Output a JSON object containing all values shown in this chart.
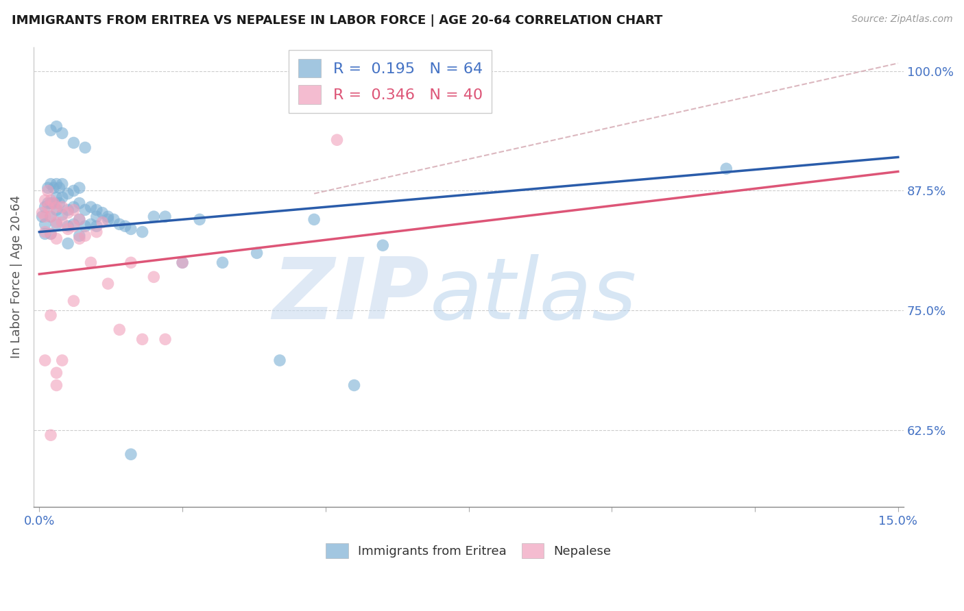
{
  "title": "IMMIGRANTS FROM ERITREA VS NEPALESE IN LABOR FORCE | AGE 20-64 CORRELATION CHART",
  "source": "Source: ZipAtlas.com",
  "ylabel": "In Labor Force | Age 20-64",
  "xlim": [
    -0.001,
    0.151
  ],
  "ylim": [
    0.545,
    1.025
  ],
  "xticks": [
    0.0,
    0.025,
    0.05,
    0.075,
    0.1,
    0.125,
    0.15
  ],
  "xticklabels": [
    "0.0%",
    "",
    "",
    "",
    "",
    "",
    "15.0%"
  ],
  "yticks": [
    0.625,
    0.75,
    0.875,
    1.0
  ],
  "yticklabels": [
    "62.5%",
    "75.0%",
    "87.5%",
    "100.0%"
  ],
  "axis_color": "#4472c4",
  "blue_R": "0.195",
  "blue_N": "64",
  "pink_R": "0.346",
  "pink_N": "40",
  "blue_dot_color": "#7bafd4",
  "pink_dot_color": "#f0a0bc",
  "blue_line_color": "#2a5caa",
  "pink_line_color": "#dd5577",
  "dashed_line_color": "#d8b0b8",
  "blue_trend": [
    0.0,
    0.832,
    0.15,
    0.91
  ],
  "pink_trend": [
    0.0,
    0.788,
    0.15,
    0.895
  ],
  "dashed_trend": [
    0.048,
    0.872,
    0.15,
    1.008
  ],
  "blue_scatter_x": [
    0.0005,
    0.001,
    0.001,
    0.001,
    0.0015,
    0.0015,
    0.002,
    0.002,
    0.002,
    0.002,
    0.0025,
    0.0025,
    0.003,
    0.003,
    0.003,
    0.003,
    0.0035,
    0.0035,
    0.004,
    0.004,
    0.004,
    0.005,
    0.005,
    0.005,
    0.005,
    0.006,
    0.006,
    0.006,
    0.007,
    0.007,
    0.007,
    0.007,
    0.008,
    0.008,
    0.009,
    0.009,
    0.01,
    0.01,
    0.011,
    0.012,
    0.013,
    0.014,
    0.015,
    0.016,
    0.018,
    0.02,
    0.022,
    0.025,
    0.028,
    0.032,
    0.038,
    0.042,
    0.048,
    0.055,
    0.06,
    0.002,
    0.003,
    0.004,
    0.006,
    0.008,
    0.01,
    0.012,
    0.12,
    0.016
  ],
  "blue_scatter_y": [
    0.848,
    0.858,
    0.84,
    0.83,
    0.878,
    0.862,
    0.882,
    0.862,
    0.848,
    0.83,
    0.878,
    0.862,
    0.882,
    0.868,
    0.855,
    0.84,
    0.878,
    0.862,
    0.882,
    0.868,
    0.85,
    0.872,
    0.855,
    0.838,
    0.82,
    0.875,
    0.858,
    0.84,
    0.878,
    0.862,
    0.845,
    0.828,
    0.855,
    0.838,
    0.858,
    0.84,
    0.855,
    0.838,
    0.852,
    0.848,
    0.845,
    0.84,
    0.838,
    0.835,
    0.832,
    0.848,
    0.848,
    0.8,
    0.845,
    0.8,
    0.81,
    0.698,
    0.845,
    0.672,
    0.818,
    0.938,
    0.942,
    0.935,
    0.925,
    0.92,
    0.848,
    0.845,
    0.898,
    0.6
  ],
  "pink_scatter_x": [
    0.0005,
    0.001,
    0.001,
    0.001,
    0.0015,
    0.0015,
    0.002,
    0.002,
    0.002,
    0.0025,
    0.003,
    0.003,
    0.003,
    0.004,
    0.004,
    0.005,
    0.005,
    0.006,
    0.006,
    0.007,
    0.007,
    0.008,
    0.009,
    0.01,
    0.011,
    0.012,
    0.014,
    0.016,
    0.018,
    0.02,
    0.022,
    0.025,
    0.001,
    0.002,
    0.003,
    0.004,
    0.006,
    0.002,
    0.052,
    0.003
  ],
  "pink_scatter_y": [
    0.852,
    0.865,
    0.848,
    0.832,
    0.875,
    0.858,
    0.865,
    0.848,
    0.83,
    0.862,
    0.858,
    0.842,
    0.825,
    0.858,
    0.842,
    0.852,
    0.835,
    0.855,
    0.838,
    0.845,
    0.825,
    0.828,
    0.8,
    0.832,
    0.842,
    0.778,
    0.73,
    0.8,
    0.72,
    0.785,
    0.72,
    0.8,
    0.698,
    0.745,
    0.672,
    0.698,
    0.76,
    0.62,
    0.928,
    0.685
  ]
}
